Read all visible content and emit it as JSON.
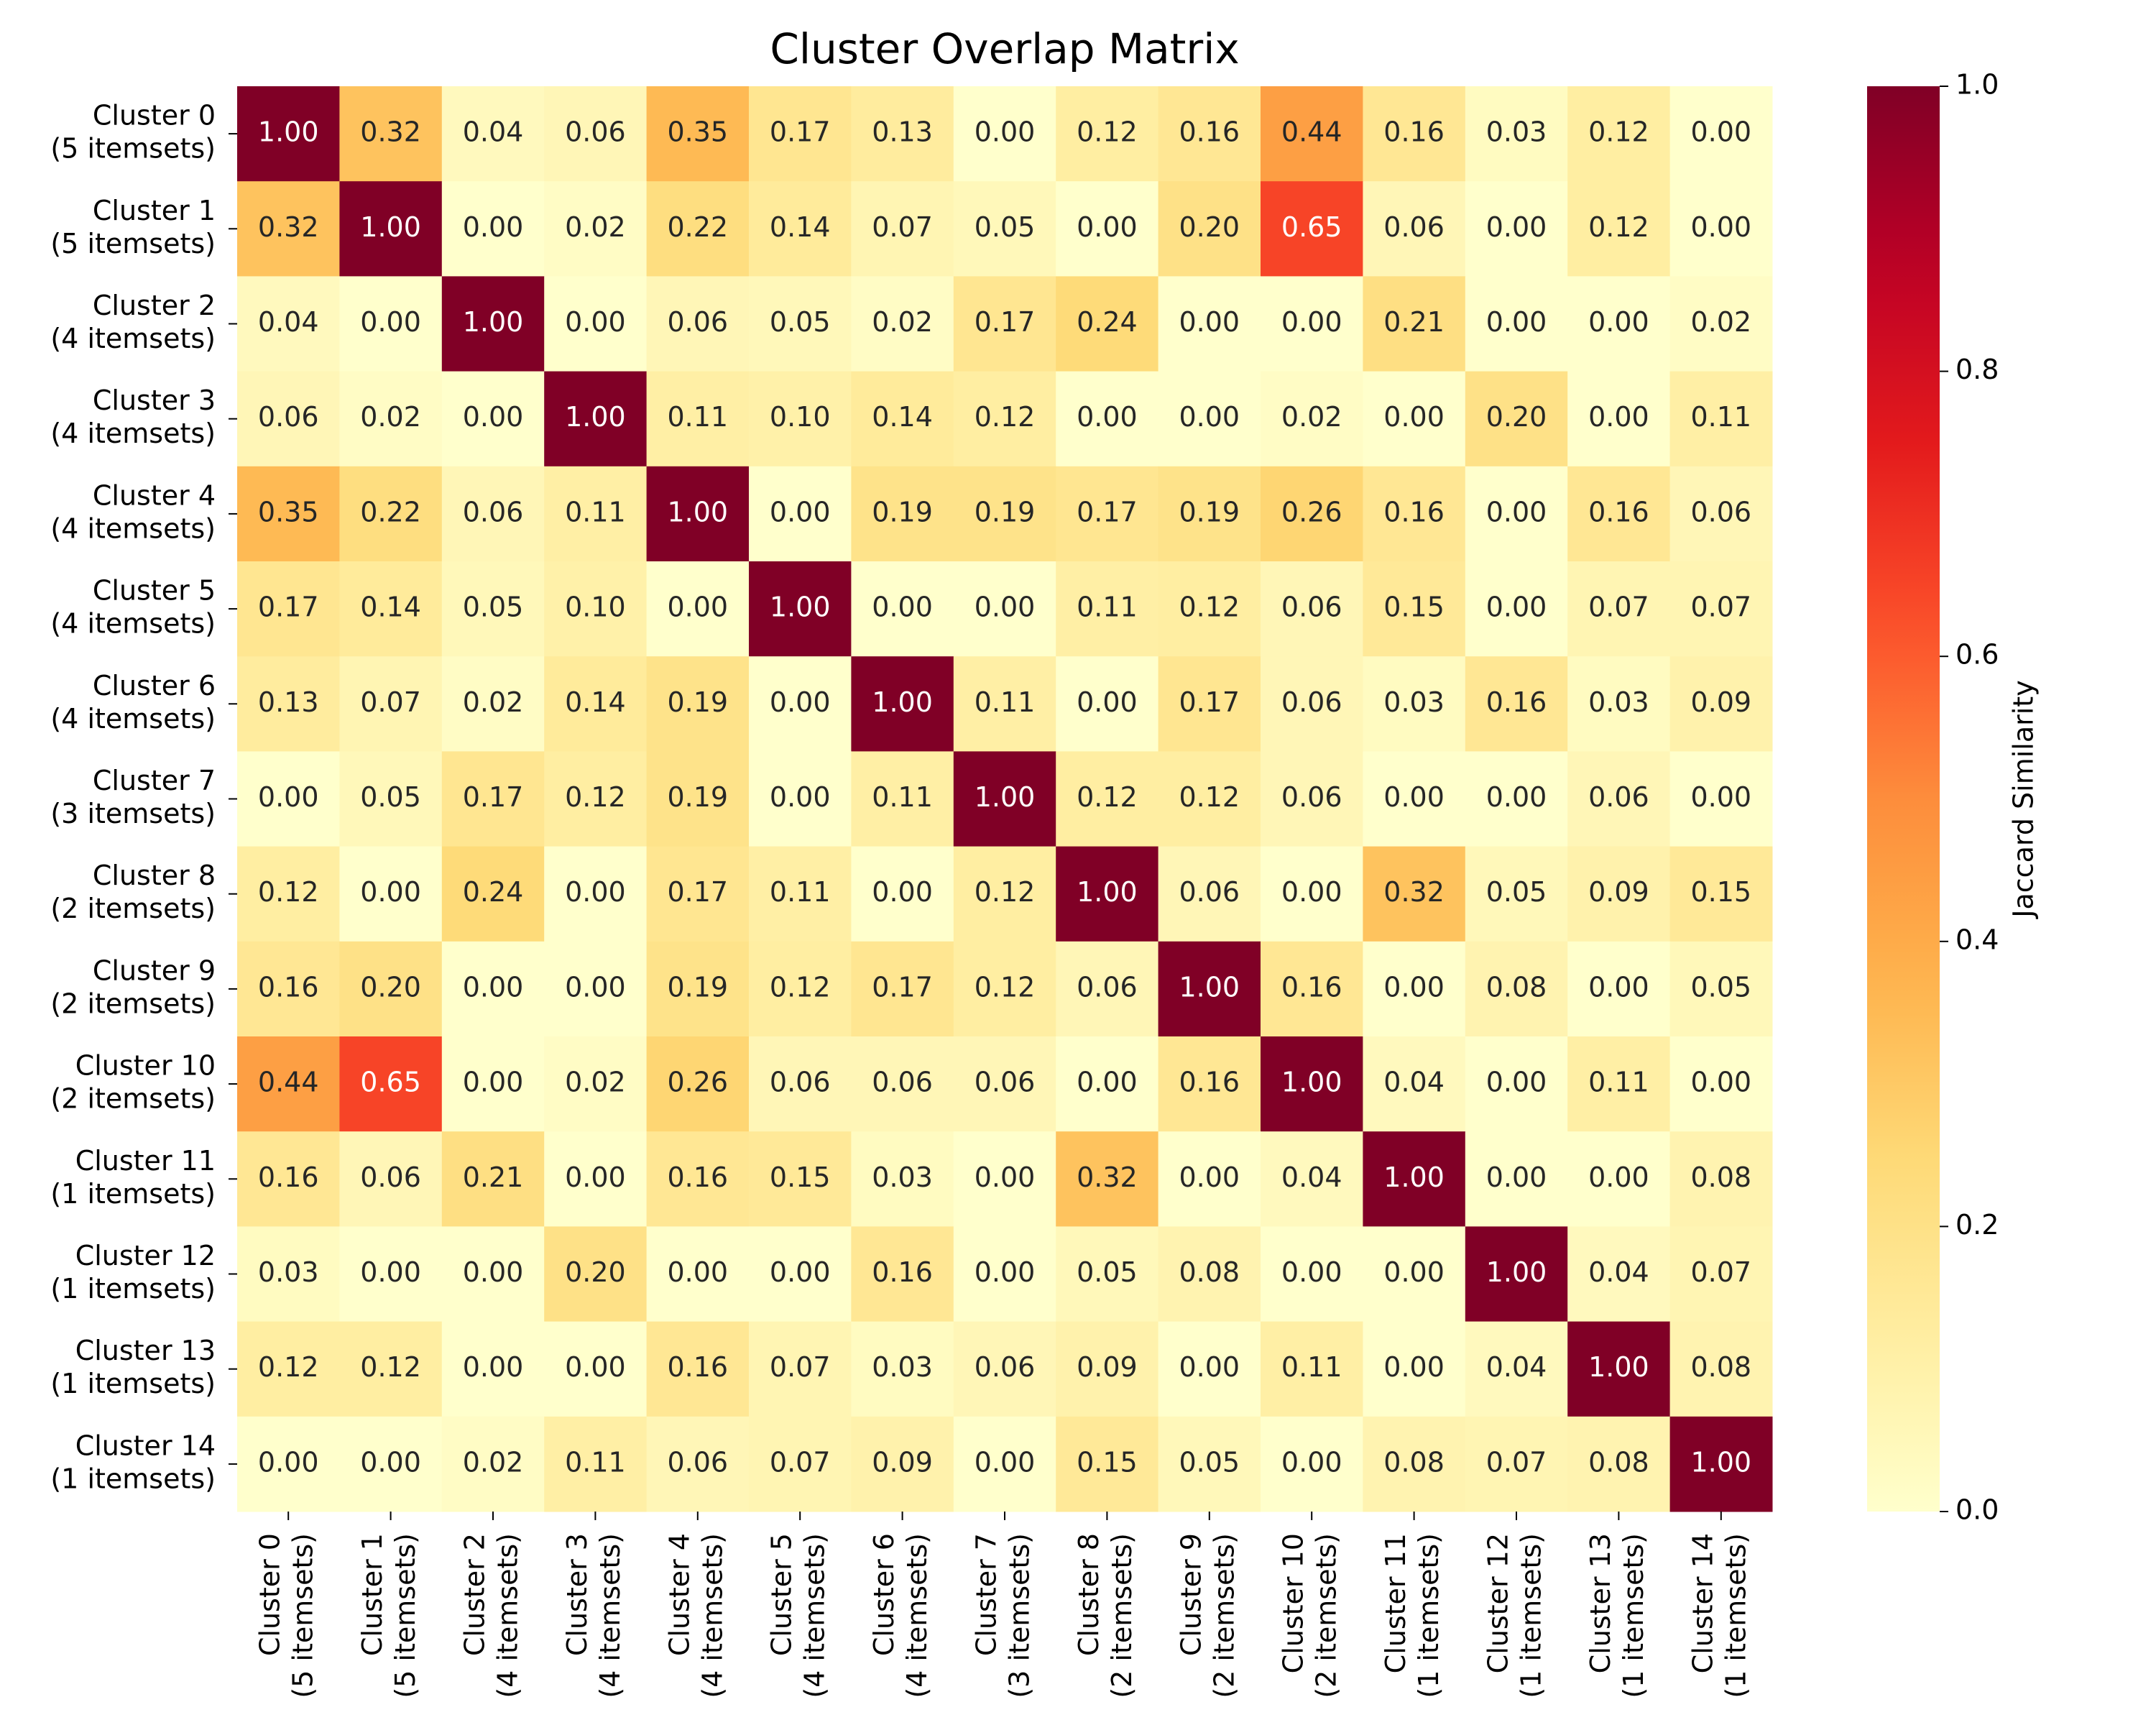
{
  "chart_data": {
    "type": "heatmap",
    "title": "Cluster Overlap Matrix",
    "categories": [
      [
        "Cluster 0",
        "(5 itemsets)"
      ],
      [
        "Cluster 1",
        "(5 itemsets)"
      ],
      [
        "Cluster 2",
        "(4 itemsets)"
      ],
      [
        "Cluster 3",
        "(4 itemsets)"
      ],
      [
        "Cluster 4",
        "(4 itemsets)"
      ],
      [
        "Cluster 5",
        "(4 itemsets)"
      ],
      [
        "Cluster 6",
        "(4 itemsets)"
      ],
      [
        "Cluster 7",
        "(3 itemsets)"
      ],
      [
        "Cluster 8",
        "(2 itemsets)"
      ],
      [
        "Cluster 9",
        "(2 itemsets)"
      ],
      [
        "Cluster 10",
        "(2 itemsets)"
      ],
      [
        "Cluster 11",
        "(1 itemsets)"
      ],
      [
        "Cluster 12",
        "(1 itemsets)"
      ],
      [
        "Cluster 13",
        "(1 itemsets)"
      ],
      [
        "Cluster 14",
        "(1 itemsets)"
      ]
    ],
    "values": [
      [
        1,
        0.32,
        0.04,
        0.06,
        0.35,
        0.17,
        0.13,
        0,
        0.12,
        0.16,
        0.44,
        0.16,
        0.03,
        0.12,
        0
      ],
      [
        0.32,
        1,
        0,
        0.02,
        0.22,
        0.14,
        0.07,
        0.05,
        0,
        0.2,
        0.65,
        0.06,
        0,
        0.12,
        0
      ],
      [
        0.04,
        0,
        1,
        0,
        0.06,
        0.05,
        0.02,
        0.17,
        0.24,
        0,
        0,
        0.21,
        0,
        0,
        0.02
      ],
      [
        0.06,
        0.02,
        0,
        1,
        0.11,
        0.1,
        0.14,
        0.12,
        0,
        0,
        0.02,
        0,
        0.2,
        0,
        0.11
      ],
      [
        0.35,
        0.22,
        0.06,
        0.11,
        1,
        0,
        0.19,
        0.19,
        0.17,
        0.19,
        0.26,
        0.16,
        0,
        0.16,
        0.06
      ],
      [
        0.17,
        0.14,
        0.05,
        0.1,
        0,
        1,
        0,
        0,
        0.11,
        0.12,
        0.06,
        0.15,
        0,
        0.07,
        0.07
      ],
      [
        0.13,
        0.07,
        0.02,
        0.14,
        0.19,
        0,
        1,
        0.11,
        0,
        0.17,
        0.06,
        0.03,
        0.16,
        0.03,
        0.09
      ],
      [
        0,
        0.05,
        0.17,
        0.12,
        0.19,
        0,
        0.11,
        1,
        0.12,
        0.12,
        0.06,
        0,
        0,
        0.06,
        0
      ],
      [
        0.12,
        0,
        0.24,
        0,
        0.17,
        0.11,
        0,
        0.12,
        1,
        0.06,
        0,
        0.32,
        0.05,
        0.09,
        0.15
      ],
      [
        0.16,
        0.2,
        0,
        0,
        0.19,
        0.12,
        0.17,
        0.12,
        0.06,
        1,
        0.16,
        0,
        0.08,
        0,
        0.05
      ],
      [
        0.44,
        0.65,
        0,
        0.02,
        0.26,
        0.06,
        0.06,
        0.06,
        0,
        0.16,
        1,
        0.04,
        0,
        0.11,
        0
      ],
      [
        0.16,
        0.06,
        0.21,
        0,
        0.16,
        0.15,
        0.03,
        0,
        0.32,
        0,
        0.04,
        1,
        0,
        0,
        0.08
      ],
      [
        0.03,
        0,
        0,
        0.2,
        0,
        0,
        0.16,
        0,
        0.05,
        0.08,
        0,
        0,
        1,
        0.04,
        0.07
      ],
      [
        0.12,
        0.12,
        0,
        0,
        0.16,
        0.07,
        0.03,
        0.06,
        0.09,
        0,
        0.11,
        0,
        0.04,
        1,
        0.08
      ],
      [
        0,
        0,
        0.02,
        0.11,
        0.06,
        0.07,
        0.09,
        0,
        0.15,
        0.05,
        0,
        0.08,
        0.07,
        0.08,
        1
      ]
    ],
    "value_labels": [
      [
        "1.00",
        "0.32",
        "0.04",
        "0.06",
        "0.35",
        "0.17",
        "0.13",
        "0.00",
        "0.12",
        "0.16",
        "0.44",
        "0.16",
        "0.03",
        "0.12",
        "0.00"
      ],
      [
        "0.32",
        "1.00",
        "0.00",
        "0.02",
        "0.22",
        "0.14",
        "0.07",
        "0.05",
        "0.00",
        "0.20",
        "0.65",
        "0.06",
        "0.00",
        "0.12",
        "0.00"
      ],
      [
        "0.04",
        "0.00",
        "1.00",
        "0.00",
        "0.06",
        "0.05",
        "0.02",
        "0.17",
        "0.24",
        "0.00",
        "0.00",
        "0.21",
        "0.00",
        "0.00",
        "0.02"
      ],
      [
        "0.06",
        "0.02",
        "0.00",
        "1.00",
        "0.11",
        "0.10",
        "0.14",
        "0.12",
        "0.00",
        "0.00",
        "0.02",
        "0.00",
        "0.20",
        "0.00",
        "0.11"
      ],
      [
        "0.35",
        "0.22",
        "0.06",
        "0.11",
        "1.00",
        "0.00",
        "0.19",
        "0.19",
        "0.17",
        "0.19",
        "0.26",
        "0.16",
        "0.00",
        "0.16",
        "0.06"
      ],
      [
        "0.17",
        "0.14",
        "0.05",
        "0.10",
        "0.00",
        "1.00",
        "0.00",
        "0.00",
        "0.11",
        "0.12",
        "0.06",
        "0.15",
        "0.00",
        "0.07",
        "0.07"
      ],
      [
        "0.13",
        "0.07",
        "0.02",
        "0.14",
        "0.19",
        "0.00",
        "1.00",
        "0.11",
        "0.00",
        "0.17",
        "0.06",
        "0.03",
        "0.16",
        "0.03",
        "0.09"
      ],
      [
        "0.00",
        "0.05",
        "0.17",
        "0.12",
        "0.19",
        "0.00",
        "0.11",
        "1.00",
        "0.12",
        "0.12",
        "0.06",
        "0.00",
        "0.00",
        "0.06",
        "0.00"
      ],
      [
        "0.12",
        "0.00",
        "0.24",
        "0.00",
        "0.17",
        "0.11",
        "0.00",
        "0.12",
        "1.00",
        "0.06",
        "0.00",
        "0.32",
        "0.05",
        "0.09",
        "0.15"
      ],
      [
        "0.16",
        "0.20",
        "0.00",
        "0.00",
        "0.19",
        "0.12",
        "0.17",
        "0.12",
        "0.06",
        "1.00",
        "0.16",
        "0.00",
        "0.08",
        "0.00",
        "0.05"
      ],
      [
        "0.44",
        "0.65",
        "0.00",
        "0.02",
        "0.26",
        "0.06",
        "0.06",
        "0.06",
        "0.00",
        "0.16",
        "1.00",
        "0.04",
        "0.00",
        "0.11",
        "0.00"
      ],
      [
        "0.16",
        "0.06",
        "0.21",
        "0.00",
        "0.16",
        "0.15",
        "0.03",
        "0.00",
        "0.32",
        "0.00",
        "0.04",
        "1.00",
        "0.00",
        "0.00",
        "0.08"
      ],
      [
        "0.03",
        "0.00",
        "0.00",
        "0.20",
        "0.00",
        "0.00",
        "0.16",
        "0.00",
        "0.05",
        "0.08",
        "0.00",
        "0.00",
        "1.00",
        "0.04",
        "0.07"
      ],
      [
        "0.12",
        "0.12",
        "0.00",
        "0.00",
        "0.16",
        "0.07",
        "0.03",
        "0.06",
        "0.09",
        "0.00",
        "0.11",
        "0.00",
        "0.04",
        "1.00",
        "0.08"
      ],
      [
        "0.00",
        "0.00",
        "0.02",
        "0.11",
        "0.06",
        "0.07",
        "0.09",
        "0.00",
        "0.15",
        "0.05",
        "0.00",
        "0.08",
        "0.07",
        "0.08",
        "1.00"
      ]
    ],
    "colormap": "YlOrRd",
    "clim": [
      0,
      1
    ],
    "cticks": [
      {
        "value": 0,
        "label": "0.0"
      },
      0.2,
      0.4,
      0.6,
      0.8,
      {
        "value": 1,
        "label": "1.0"
      }
    ],
    "colorbar_label": "Jaccard Similarity"
  }
}
